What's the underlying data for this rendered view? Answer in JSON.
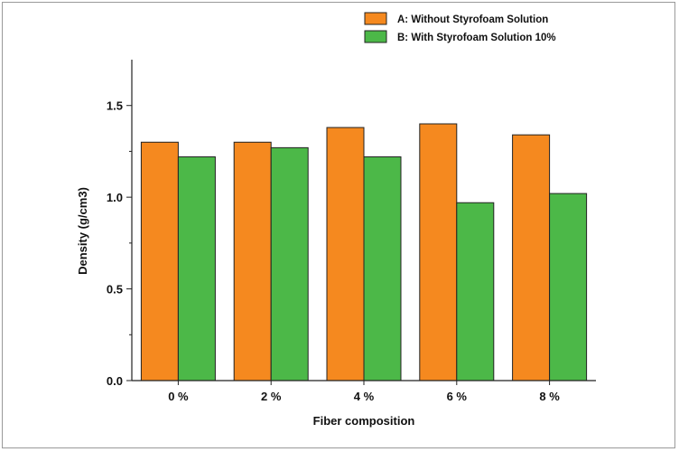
{
  "chart_data": {
    "type": "bar",
    "categories": [
      "0 %",
      "2 %",
      "4 %",
      "6 %",
      "8 %"
    ],
    "series": [
      {
        "name": "A: Without Styrofoam Solution",
        "values": [
          1.3,
          1.3,
          1.38,
          1.4,
          1.34
        ],
        "color": "#f5891f"
      },
      {
        "name": "B: With Styrofoam Solution 10%",
        "values": [
          1.22,
          1.27,
          1.22,
          0.97,
          1.02
        ],
        "color": "#4cb848"
      }
    ],
    "xlabel": "Fiber composition",
    "ylabel": "Density (g/cm3)",
    "ylim": [
      0,
      1.75
    ],
    "yticks": [
      0.0,
      0.5,
      1.0,
      1.5
    ],
    "ytick_labels": [
      "0.0",
      "0.5",
      "1.0",
      "1.5"
    ],
    "legend_position": "top-right",
    "grid": false
  }
}
